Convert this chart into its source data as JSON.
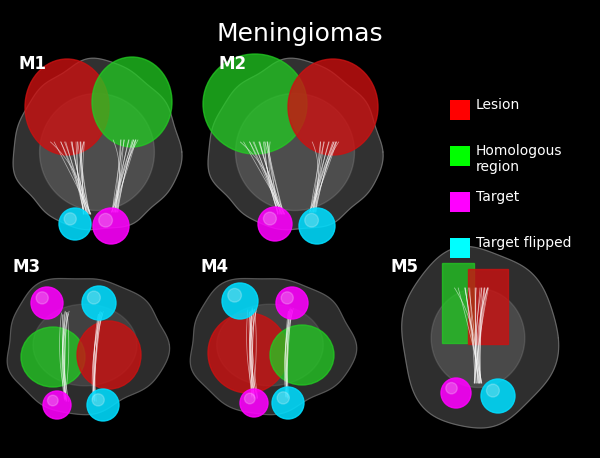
{
  "title": "Meningiomas",
  "title_color": "white",
  "title_fontsize": 18,
  "background_color": "#000000",
  "legend_items": [
    {
      "label": "Lesion",
      "color": "#ff0000"
    },
    {
      "label": "Homologous\nregion",
      "color": "#00ff00"
    },
    {
      "label": "Target",
      "color": "#ff00ff"
    },
    {
      "label": "Target flipped",
      "color": "#00ffff"
    }
  ],
  "legend_text_color": "white",
  "legend_fontsize": 10,
  "case_label_fontsize": 12,
  "case_label_color": "white",
  "lesion_color": "#cc1111",
  "homologous_color": "#22cc22",
  "target_color": "#ff00ff",
  "target_flipped_color": "#00ddff",
  "tract_color": "white",
  "brain_base_color": "#707070",
  "brain_light_color": "#a0a0a0"
}
